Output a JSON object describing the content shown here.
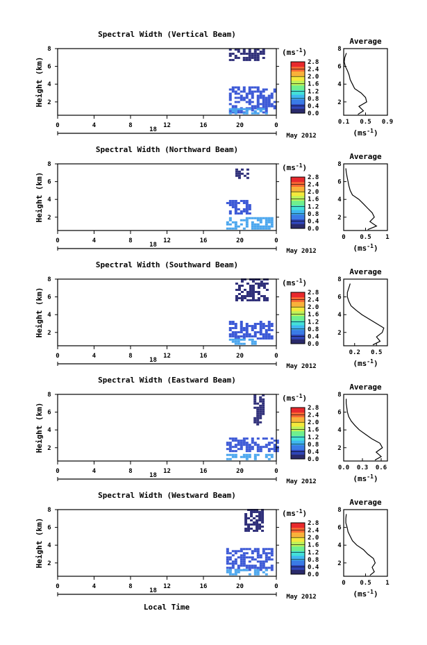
{
  "figure": {
    "xlabel": "Local Time",
    "date_label": "May 2012",
    "day_label": "18",
    "unit_label": "(ms",
    "unit_exp": "-1",
    "unit_close": ")",
    "avg_title": "Average",
    "ylabel": "Height (km)"
  },
  "colors": {
    "scale": [
      "#2a2a6a",
      "#2f45b8",
      "#3a7be6",
      "#3fb7f0",
      "#43e0d8",
      "#6fef8e",
      "#bdf25a",
      "#f4e83c",
      "#f9b13a",
      "#f76a34",
      "#e8292d"
    ],
    "dark": "#30307a",
    "mid": "#3b58d6",
    "light": "#4aa6ee"
  },
  "chart_data": [
    {
      "type": "heatmap",
      "title": "Spectral Width (Vertical Beam)",
      "x_ticks": [
        "0",
        "4",
        "8",
        "12",
        "16",
        "20",
        "0"
      ],
      "xlim": [
        0,
        24
      ],
      "y_ticks": [
        "2",
        "4",
        "6",
        "8"
      ],
      "ylim": [
        0.5,
        8
      ],
      "colorbar_ticks": [
        "0.0",
        "0.4",
        "0.8",
        "1.2",
        "1.6",
        "2.0",
        "2.4",
        "2.8"
      ],
      "colorbar_range": [
        0,
        2.8
      ],
      "regions": [
        {
          "x": [
            18.8,
            22.5
          ],
          "y": [
            6.6,
            7.9
          ],
          "level": "dark"
        },
        {
          "x": [
            18.8,
            23.9
          ],
          "y": [
            0.7,
            3.6
          ],
          "level": "mid"
        },
        {
          "x": [
            18.8,
            23.0
          ],
          "y": [
            0.6,
            1.3
          ],
          "level": "light"
        }
      ],
      "average": {
        "xlim": [
          0.1,
          0.9
        ],
        "x_ticks": [
          "0.1",
          "0.5",
          "0.9"
        ],
        "height": [
          0.6,
          1.0,
          1.5,
          2.0,
          2.5,
          3.0,
          3.5,
          4.0,
          4.5,
          5.0,
          5.5,
          6.0,
          6.5,
          7.0,
          7.5
        ],
        "width": [
          0.36,
          0.46,
          0.38,
          0.52,
          0.5,
          0.42,
          0.3,
          0.26,
          0.22,
          0.2,
          0.17,
          0.13,
          0.11,
          0.12,
          0.15
        ]
      }
    },
    {
      "type": "heatmap",
      "title": "Spectral Width (Northward Beam)",
      "x_ticks": [
        "0",
        "4",
        "8",
        "12",
        "16",
        "20",
        "0"
      ],
      "xlim": [
        0,
        24
      ],
      "y_ticks": [
        "2",
        "4",
        "6",
        "8"
      ],
      "ylim": [
        0.5,
        8
      ],
      "colorbar_ticks": [
        "0.0",
        "0.4",
        "0.8",
        "1.2",
        "1.6",
        "2.0",
        "2.4",
        "2.8"
      ],
      "colorbar_range": [
        0,
        2.8
      ],
      "regions": [
        {
          "x": [
            19.5,
            21.0
          ],
          "y": [
            6.3,
            7.4
          ],
          "level": "dark"
        },
        {
          "x": [
            18.5,
            21.0
          ],
          "y": [
            2.3,
            3.8
          ],
          "level": "mid"
        },
        {
          "x": [
            18.5,
            23.5
          ],
          "y": [
            0.6,
            1.9
          ],
          "level": "light"
        }
      ],
      "average": {
        "xlim": [
          0,
          1
        ],
        "x_ticks": [
          "0",
          "0.5",
          "1"
        ],
        "height": [
          0.6,
          1.0,
          1.5,
          2.0,
          2.5,
          3.0,
          3.5,
          4.0,
          4.5,
          5.0,
          5.5,
          6.0,
          6.5,
          7.0,
          7.5
        ],
        "width": [
          0.55,
          0.75,
          0.6,
          0.7,
          0.65,
          0.55,
          0.45,
          0.35,
          0.2,
          0.15,
          0.12,
          0.1,
          0.08,
          0.06,
          0.05
        ]
      }
    },
    {
      "type": "heatmap",
      "title": "Spectral Width (Southward Beam)",
      "x_ticks": [
        "0",
        "4",
        "8",
        "12",
        "16",
        "20",
        "0"
      ],
      "xlim": [
        0,
        24
      ],
      "y_ticks": [
        "2",
        "4",
        "6",
        "8"
      ],
      "ylim": [
        0.5,
        8
      ],
      "colorbar_ticks": [
        "0.0",
        "0.4",
        "0.8",
        "1.2",
        "1.6",
        "2.0",
        "2.4",
        "2.8"
      ],
      "colorbar_range": [
        0,
        2.8
      ],
      "regions": [
        {
          "x": [
            19.5,
            23.0
          ],
          "y": [
            5.5,
            7.9
          ],
          "level": "dark"
        },
        {
          "x": [
            18.8,
            23.5
          ],
          "y": [
            1.2,
            3.2
          ],
          "level": "mid"
        },
        {
          "x": [
            18.8,
            22.0
          ],
          "y": [
            0.6,
            1.3
          ],
          "level": "light"
        }
      ],
      "average": {
        "xlim": [
          0.05,
          0.65
        ],
        "x_ticks": [
          "0.2",
          "0.5"
        ],
        "height": [
          0.6,
          1.0,
          1.5,
          2.0,
          2.5,
          3.0,
          3.5,
          4.0,
          4.5,
          5.0,
          5.5,
          6.0,
          6.5,
          7.0,
          7.5
        ],
        "width": [
          0.45,
          0.55,
          0.5,
          0.58,
          0.6,
          0.5,
          0.4,
          0.3,
          0.22,
          0.15,
          0.12,
          0.1,
          0.1,
          0.12,
          0.14
        ]
      }
    },
    {
      "type": "heatmap",
      "title": "Spectral Width (Eastward Beam)",
      "x_ticks": [
        "0",
        "4",
        "8",
        "12",
        "16",
        "20",
        "0"
      ],
      "xlim": [
        0,
        24
      ],
      "y_ticks": [
        "2",
        "4",
        "6",
        "8"
      ],
      "ylim": [
        0.5,
        8
      ],
      "colorbar_ticks": [
        "0.0",
        "0.4",
        "0.8",
        "1.2",
        "1.6",
        "2.0",
        "2.4",
        "2.8"
      ],
      "colorbar_range": [
        0,
        2.8
      ],
      "regions": [
        {
          "x": [
            21.5,
            22.5
          ],
          "y": [
            4.5,
            7.9
          ],
          "level": "dark"
        },
        {
          "x": [
            18.5,
            24.0
          ],
          "y": [
            1.5,
            3.1
          ],
          "level": "mid"
        },
        {
          "x": [
            18.5,
            23.5
          ],
          "y": [
            0.6,
            1.2
          ],
          "level": "light"
        }
      ],
      "average": {
        "xlim": [
          0,
          0.7
        ],
        "x_ticks": [
          "0.0",
          "0.3",
          "0.6"
        ],
        "height": [
          0.6,
          1.0,
          1.5,
          2.0,
          2.5,
          3.0,
          3.5,
          4.0,
          4.5,
          5.0,
          5.5,
          6.0,
          6.5,
          7.0,
          7.5
        ],
        "width": [
          0.5,
          0.6,
          0.52,
          0.62,
          0.58,
          0.45,
          0.35,
          0.25,
          0.18,
          0.12,
          0.08,
          0.06,
          0.05,
          0.04,
          0.04
        ]
      }
    },
    {
      "type": "heatmap",
      "title": "Spectral Width (Westward Beam)",
      "x_ticks": [
        "0",
        "4",
        "8",
        "12",
        "16",
        "20",
        "0"
      ],
      "xlim": [
        0,
        24
      ],
      "y_ticks": [
        "2",
        "4",
        "6",
        "8"
      ],
      "ylim": [
        0.5,
        8
      ],
      "colorbar_ticks": [
        "0.0",
        "0.4",
        "0.8",
        "1.2",
        "1.6",
        "2.0",
        "2.4",
        "2.8"
      ],
      "colorbar_range": [
        0,
        2.8
      ],
      "regions": [
        {
          "x": [
            20.5,
            22.5
          ],
          "y": [
            5.5,
            7.9
          ],
          "level": "dark"
        },
        {
          "x": [
            18.5,
            23.5
          ],
          "y": [
            1.1,
            3.6
          ],
          "level": "mid"
        },
        {
          "x": [
            18.5,
            23.0
          ],
          "y": [
            0.6,
            1.2
          ],
          "level": "light"
        }
      ],
      "average": {
        "xlim": [
          0,
          1
        ],
        "x_ticks": [
          "0",
          "0.5",
          "1"
        ],
        "height": [
          0.6,
          1.0,
          1.5,
          2.0,
          2.5,
          3.0,
          3.5,
          4.0,
          4.5,
          5.0,
          5.5,
          6.0,
          6.5,
          7.0,
          7.5
        ],
        "width": [
          0.6,
          0.7,
          0.65,
          0.72,
          0.68,
          0.55,
          0.45,
          0.3,
          0.2,
          0.15,
          0.1,
          0.08,
          0.05,
          0.05,
          0.06
        ]
      }
    }
  ]
}
